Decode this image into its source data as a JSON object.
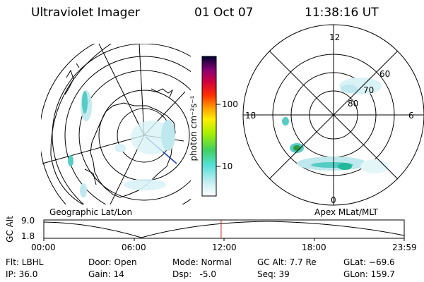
{
  "header": {
    "instrument": "Ultraviolet Imager",
    "date": "01 Oct 07",
    "time": "11:38:16 UT"
  },
  "colorbar": {
    "unit_label": "photon cm⁻²s⁻¹",
    "ticks": [
      "100",
      "10"
    ]
  },
  "left_map": {
    "label": "Geographic Lat/Lon"
  },
  "right_map": {
    "label": "Apex MLat/MLT",
    "mlt_labels": [
      "12",
      "18",
      "6",
      "0"
    ],
    "mlat_labels": [
      "60",
      "70",
      "80"
    ]
  },
  "altitude_plot": {
    "ylabel": "GC Alt",
    "y_ticks": [
      "9.0",
      "1.8"
    ],
    "x_ticks": [
      "00:00",
      "06:00",
      "12:00",
      "18:00",
      "23:59"
    ],
    "current_time_fraction": 0.492
  },
  "info": {
    "filter": "Flt: LBHL",
    "ip": "IP: 36.0",
    "door": "Door: Open",
    "gain": "Gain: 14",
    "mode": "Mode: Normal",
    "dsp": "Dsp:   -5.0",
    "gc_alt": "GC Alt: 7.7 Re",
    "seq": "Seq: 39",
    "glat": "GLat: −69.6",
    "glon": "GLon: 159.7"
  },
  "colors": {
    "marker": "#cc2222",
    "aurora_light": "#bfe8ee",
    "aurora_mid": "#55ccc4",
    "aurora_strong": "#22b89a",
    "bright_spot": "#2a9a3a"
  }
}
